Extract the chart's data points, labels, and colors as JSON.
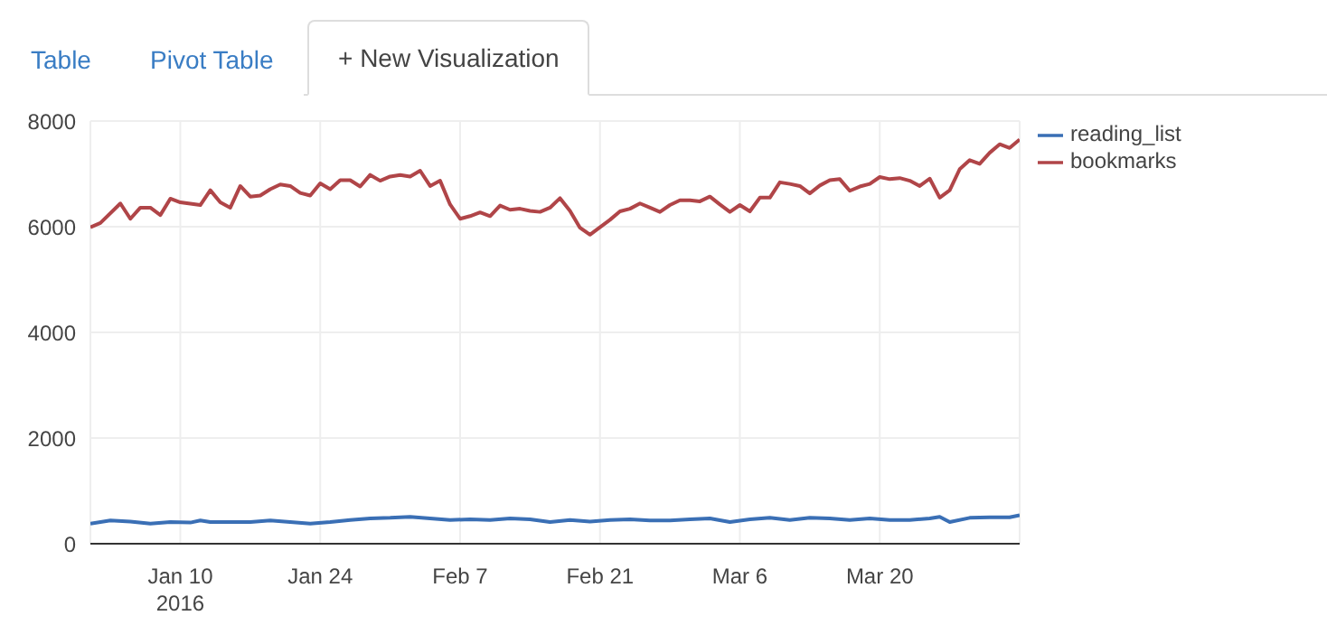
{
  "chart_data": {
    "type": "line",
    "annotations": [
      "Table",
      "Pivot Table",
      "+ New Visualization"
    ],
    "xlim": [
      "2016-01-01",
      "2016-04-03"
    ],
    "xticks": [
      {
        "value": "2016-01-10",
        "label": "Jan 10\n2016"
      },
      {
        "value": "2016-01-24",
        "label": "Jan 24"
      },
      {
        "value": "2016-02-07",
        "label": "Feb 7"
      },
      {
        "value": "2016-02-21",
        "label": "Feb 21"
      },
      {
        "value": "2016-03-06",
        "label": "Mar 6"
      },
      {
        "value": "2016-03-20",
        "label": "Mar 20"
      }
    ],
    "ylim": [
      0,
      8000
    ],
    "yticks": [
      0,
      2000,
      4000,
      6000,
      8000
    ],
    "grid": true,
    "legend": "top right",
    "marker": "none",
    "line_style": "solid",
    "series": [
      {
        "name": "reading_list",
        "color": "#3a6fb5",
        "x": [
          "2016-01-01",
          "2016-01-03",
          "2016-01-05",
          "2016-01-07",
          "2016-01-09",
          "2016-01-11",
          "2016-01-12",
          "2016-01-13",
          "2016-01-15",
          "2016-01-17",
          "2016-01-19",
          "2016-01-21",
          "2016-01-23",
          "2016-01-25",
          "2016-01-27",
          "2016-01-29",
          "2016-01-31",
          "2016-02-02",
          "2016-02-04",
          "2016-02-06",
          "2016-02-08",
          "2016-02-10",
          "2016-02-12",
          "2016-02-14",
          "2016-02-16",
          "2016-02-18",
          "2016-02-20",
          "2016-02-22",
          "2016-02-24",
          "2016-02-26",
          "2016-02-28",
          "2016-03-01",
          "2016-03-03",
          "2016-03-05",
          "2016-03-07",
          "2016-03-09",
          "2016-03-11",
          "2016-03-13",
          "2016-03-15",
          "2016-03-17",
          "2016-03-19",
          "2016-03-21",
          "2016-03-23",
          "2016-03-25",
          "2016-03-26",
          "2016-03-27",
          "2016-03-29",
          "2016-03-31",
          "2016-04-02",
          "2016-04-03"
        ],
        "values": [
          380,
          440,
          420,
          380,
          410,
          400,
          440,
          410,
          410,
          410,
          440,
          410,
          380,
          410,
          450,
          480,
          490,
          510,
          480,
          450,
          460,
          450,
          480,
          460,
          410,
          450,
          420,
          450,
          460,
          440,
          440,
          460,
          480,
          410,
          460,
          490,
          450,
          490,
          480,
          450,
          480,
          450,
          450,
          480,
          510,
          410,
          490,
          500,
          500,
          540
        ]
      },
      {
        "name": "bookmarks",
        "color": "#b04548",
        "x": [
          "2016-01-01",
          "2016-01-02",
          "2016-01-04",
          "2016-01-05",
          "2016-01-06",
          "2016-01-07",
          "2016-01-08",
          "2016-01-09",
          "2016-01-10",
          "2016-01-12",
          "2016-01-13",
          "2016-01-14",
          "2016-01-15",
          "2016-01-16",
          "2016-01-17",
          "2016-01-18",
          "2016-01-19",
          "2016-01-20",
          "2016-01-21",
          "2016-01-22",
          "2016-01-23",
          "2016-01-24",
          "2016-01-25",
          "2016-01-26",
          "2016-01-27",
          "2016-01-28",
          "2016-01-29",
          "2016-01-30",
          "2016-01-31",
          "2016-02-01",
          "2016-02-02",
          "2016-02-03",
          "2016-02-04",
          "2016-02-05",
          "2016-02-06",
          "2016-02-07",
          "2016-02-08",
          "2016-02-09",
          "2016-02-10",
          "2016-02-11",
          "2016-02-12",
          "2016-02-13",
          "2016-02-14",
          "2016-02-15",
          "2016-02-16",
          "2016-02-17",
          "2016-02-18",
          "2016-02-19",
          "2016-02-20",
          "2016-02-21",
          "2016-02-22",
          "2016-02-23",
          "2016-02-24",
          "2016-02-25",
          "2016-02-26",
          "2016-02-27",
          "2016-02-28",
          "2016-02-29",
          "2016-03-01",
          "2016-03-02",
          "2016-03-03",
          "2016-03-04",
          "2016-03-05",
          "2016-03-06",
          "2016-03-07",
          "2016-03-08",
          "2016-03-09",
          "2016-03-10",
          "2016-03-11",
          "2016-03-12",
          "2016-03-13",
          "2016-03-14",
          "2016-03-15",
          "2016-03-16",
          "2016-03-17",
          "2016-03-18",
          "2016-03-19",
          "2016-03-20",
          "2016-03-21",
          "2016-03-22",
          "2016-03-23",
          "2016-03-24",
          "2016-03-25",
          "2016-03-26",
          "2016-03-27",
          "2016-03-28",
          "2016-03-29",
          "2016-03-30",
          "2016-03-31",
          "2016-04-01",
          "2016-04-02",
          "2016-04-03"
        ],
        "values": [
          5990,
          6070,
          6440,
          6150,
          6360,
          6360,
          6220,
          6530,
          6460,
          6410,
          6690,
          6460,
          6360,
          6770,
          6570,
          6590,
          6710,
          6800,
          6770,
          6640,
          6590,
          6820,
          6710,
          6880,
          6880,
          6760,
          6980,
          6870,
          6950,
          6980,
          6950,
          7060,
          6770,
          6870,
          6420,
          6150,
          6200,
          6270,
          6200,
          6400,
          6320,
          6340,
          6300,
          6280,
          6360,
          6540,
          6300,
          5980,
          5850,
          5990,
          6130,
          6290,
          6340,
          6440,
          6360,
          6280,
          6410,
          6500,
          6500,
          6480,
          6570,
          6420,
          6280,
          6410,
          6290,
          6550,
          6550,
          6840,
          6810,
          6770,
          6630,
          6780,
          6880,
          6900,
          6680,
          6760,
          6810,
          6940,
          6900,
          6920,
          6870,
          6770,
          6910,
          6550,
          6690,
          7090,
          7260,
          7190,
          7400,
          7560,
          7490,
          7650
        ]
      }
    ]
  }
}
